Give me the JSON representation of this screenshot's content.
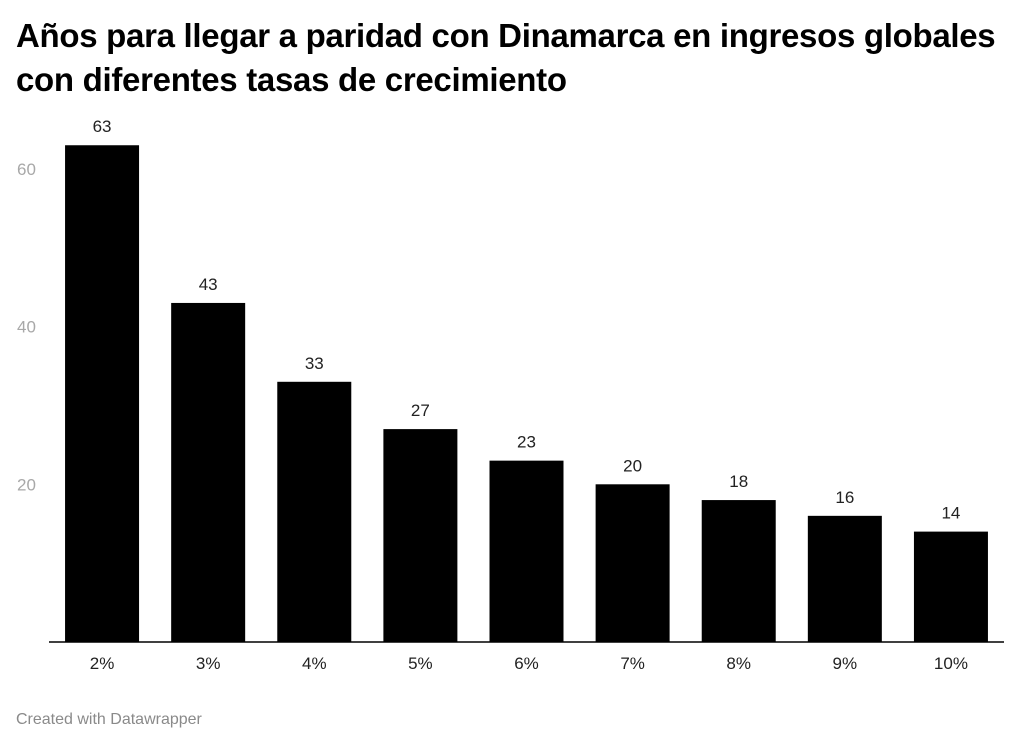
{
  "chart_data": {
    "type": "bar",
    "title": "Años para llegar a paridad con Dinamarca en ingresos globales con diferentes tasas de crecimiento",
    "categories": [
      "2%",
      "3%",
      "4%",
      "5%",
      "6%",
      "7%",
      "8%",
      "9%",
      "10%"
    ],
    "values": [
      63,
      43,
      33,
      27,
      23,
      20,
      18,
      16,
      14
    ],
    "y_ticks": [
      "20",
      "40",
      "60"
    ],
    "xlabel": "",
    "ylabel": "",
    "ylim": [
      0,
      63
    ],
    "grid": false,
    "bar_color": "#000000",
    "data_labels": true
  },
  "footer": {
    "credit": "Created with Datawrapper"
  }
}
